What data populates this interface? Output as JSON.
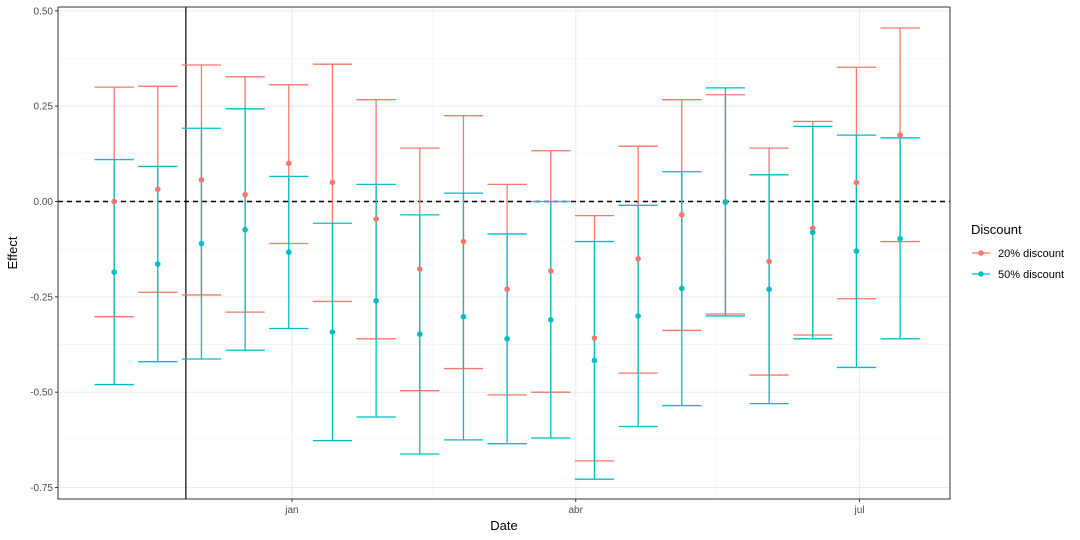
{
  "chart_data": {
    "type": "scatter",
    "subtype": "point-errorbar",
    "xlabel": "Date",
    "ylabel": "Effect",
    "ylim": [
      -0.78,
      0.51
    ],
    "xlim": [
      "2023-10-18",
      "2024-07-30"
    ],
    "x_ticks": [
      {
        "date": "2024-01-01",
        "label": "jan"
      },
      {
        "date": "2024-04-01",
        "label": "abr"
      },
      {
        "date": "2024-07-01",
        "label": "jul"
      }
    ],
    "y_ticks": [
      {
        "value": 0.5,
        "label": "0.50"
      },
      {
        "value": 0.25,
        "label": "0.25"
      },
      {
        "value": 0.0,
        "label": "0.00"
      },
      {
        "value": -0.25,
        "label": "-0.25"
      },
      {
        "value": -0.5,
        "label": "-0.50"
      },
      {
        "value": -0.75,
        "label": "-0.75"
      }
    ],
    "reference_hline": 0,
    "reference_vline": "2023-11-28",
    "grid": true,
    "legend": {
      "title": "Discount",
      "position": "right"
    },
    "series": [
      {
        "name": "20% discount",
        "color": "#F8766D",
        "points": [
          {
            "x": "2023-11-05",
            "y": 0.0,
            "low": -0.302,
            "high": 0.3
          },
          {
            "x": "2023-11-19",
            "y": 0.032,
            "low": -0.238,
            "high": 0.302
          },
          {
            "x": "2023-12-03",
            "y": 0.057,
            "low": -0.245,
            "high": 0.358
          },
          {
            "x": "2023-12-17",
            "y": 0.018,
            "low": -0.29,
            "high": 0.327
          },
          {
            "x": "2023-12-31",
            "y": 0.1,
            "low": -0.11,
            "high": 0.306
          },
          {
            "x": "2024-01-14",
            "y": 0.05,
            "low": -0.262,
            "high": 0.36
          },
          {
            "x": "2024-01-28",
            "y": -0.046,
            "low": -0.36,
            "high": 0.267
          },
          {
            "x": "2024-02-11",
            "y": -0.177,
            "low": -0.496,
            "high": 0.14
          },
          {
            "x": "2024-02-25",
            "y": -0.105,
            "low": -0.438,
            "high": 0.225
          },
          {
            "x": "2024-03-10",
            "y": -0.23,
            "low": -0.507,
            "high": 0.045
          },
          {
            "x": "2024-03-24",
            "y": -0.182,
            "low": -0.5,
            "high": 0.133
          },
          {
            "x": "2024-04-07",
            "y": -0.358,
            "low": -0.68,
            "high": -0.037
          },
          {
            "x": "2024-04-21",
            "y": -0.15,
            "low": -0.45,
            "high": 0.145
          },
          {
            "x": "2024-05-05",
            "y": -0.035,
            "low": -0.338,
            "high": 0.267
          },
          {
            "x": "2024-05-19",
            "y": 0.0,
            "low": -0.295,
            "high": 0.28
          },
          {
            "x": "2024-06-02",
            "y": -0.157,
            "low": -0.455,
            "high": 0.14
          },
          {
            "x": "2024-06-16",
            "y": -0.07,
            "low": -0.35,
            "high": 0.21
          },
          {
            "x": "2024-06-30",
            "y": 0.05,
            "low": -0.255,
            "high": 0.352
          },
          {
            "x": "2024-07-14",
            "y": 0.174,
            "low": -0.105,
            "high": 0.455
          }
        ]
      },
      {
        "name": "50% discount",
        "color": "#00BFC4",
        "points": [
          {
            "x": "2023-11-05",
            "y": -0.185,
            "low": -0.48,
            "high": 0.11
          },
          {
            "x": "2023-11-19",
            "y": -0.164,
            "low": -0.42,
            "high": 0.092
          },
          {
            "x": "2023-12-03",
            "y": -0.11,
            "low": -0.413,
            "high": 0.192
          },
          {
            "x": "2023-12-17",
            "y": -0.074,
            "low": -0.39,
            "high": 0.243
          },
          {
            "x": "2023-12-31",
            "y": -0.133,
            "low": -0.333,
            "high": 0.066
          },
          {
            "x": "2024-01-14",
            "y": -0.342,
            "low": -0.627,
            "high": -0.057
          },
          {
            "x": "2024-01-28",
            "y": -0.26,
            "low": -0.565,
            "high": 0.045
          },
          {
            "x": "2024-02-11",
            "y": -0.348,
            "low": -0.662,
            "high": -0.035
          },
          {
            "x": "2024-02-25",
            "y": -0.302,
            "low": -0.625,
            "high": 0.022
          },
          {
            "x": "2024-03-10",
            "y": -0.36,
            "low": -0.635,
            "high": -0.085
          },
          {
            "x": "2024-03-24",
            "y": -0.31,
            "low": -0.62,
            "high": 0.0
          },
          {
            "x": "2024-04-07",
            "y": -0.417,
            "low": -0.728,
            "high": -0.105
          },
          {
            "x": "2024-04-21",
            "y": -0.3,
            "low": -0.59,
            "high": -0.01
          },
          {
            "x": "2024-05-05",
            "y": -0.228,
            "low": -0.535,
            "high": 0.078
          },
          {
            "x": "2024-05-19",
            "y": -0.002,
            "low": -0.3,
            "high": 0.298
          },
          {
            "x": "2024-06-02",
            "y": -0.23,
            "low": -0.53,
            "high": 0.07
          },
          {
            "x": "2024-06-16",
            "y": -0.081,
            "low": -0.36,
            "high": 0.197
          },
          {
            "x": "2024-06-30",
            "y": -0.13,
            "low": -0.435,
            "high": 0.174
          },
          {
            "x": "2024-07-14",
            "y": -0.097,
            "low": -0.36,
            "high": 0.167
          }
        ]
      }
    ]
  }
}
